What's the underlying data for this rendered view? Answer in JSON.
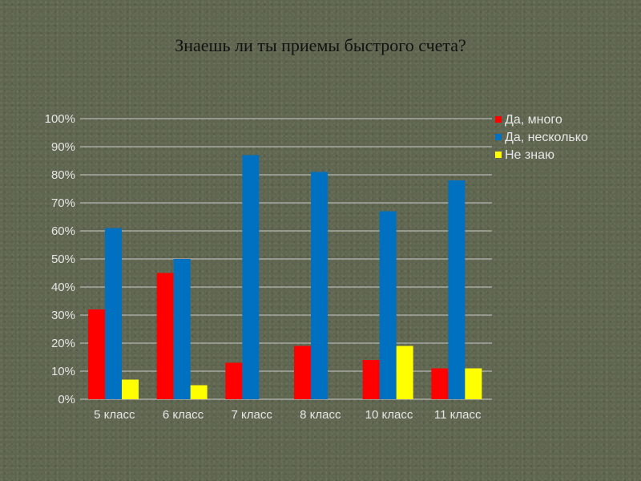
{
  "page": {
    "title": "Знаешь ли ты приемы быстрого счета?"
  },
  "chart_data": {
    "type": "bar",
    "title": "Знаешь ли ты приемы быстрого счета?",
    "categories": [
      "5 класс",
      "6 класс",
      "7 класс",
      "8 класс",
      "10 класс",
      "11 класс"
    ],
    "series": [
      {
        "name": "Да, много",
        "color": "#ff0000",
        "values": [
          32,
          45,
          13,
          19,
          14,
          11
        ]
      },
      {
        "name": "Да, несколько",
        "color": "#0070c0",
        "values": [
          61,
          50,
          87,
          81,
          67,
          78
        ]
      },
      {
        "name": "Не знаю",
        "color": "#ffff00",
        "values": [
          7,
          5,
          0,
          0,
          19,
          11
        ]
      }
    ],
    "ylim": [
      0,
      100
    ],
    "yticks": [
      "0%",
      "10%",
      "20%",
      "30%",
      "40%",
      "50%",
      "60%",
      "70%",
      "80%",
      "90%",
      "100%"
    ],
    "grid": true,
    "legend": "top-right"
  }
}
